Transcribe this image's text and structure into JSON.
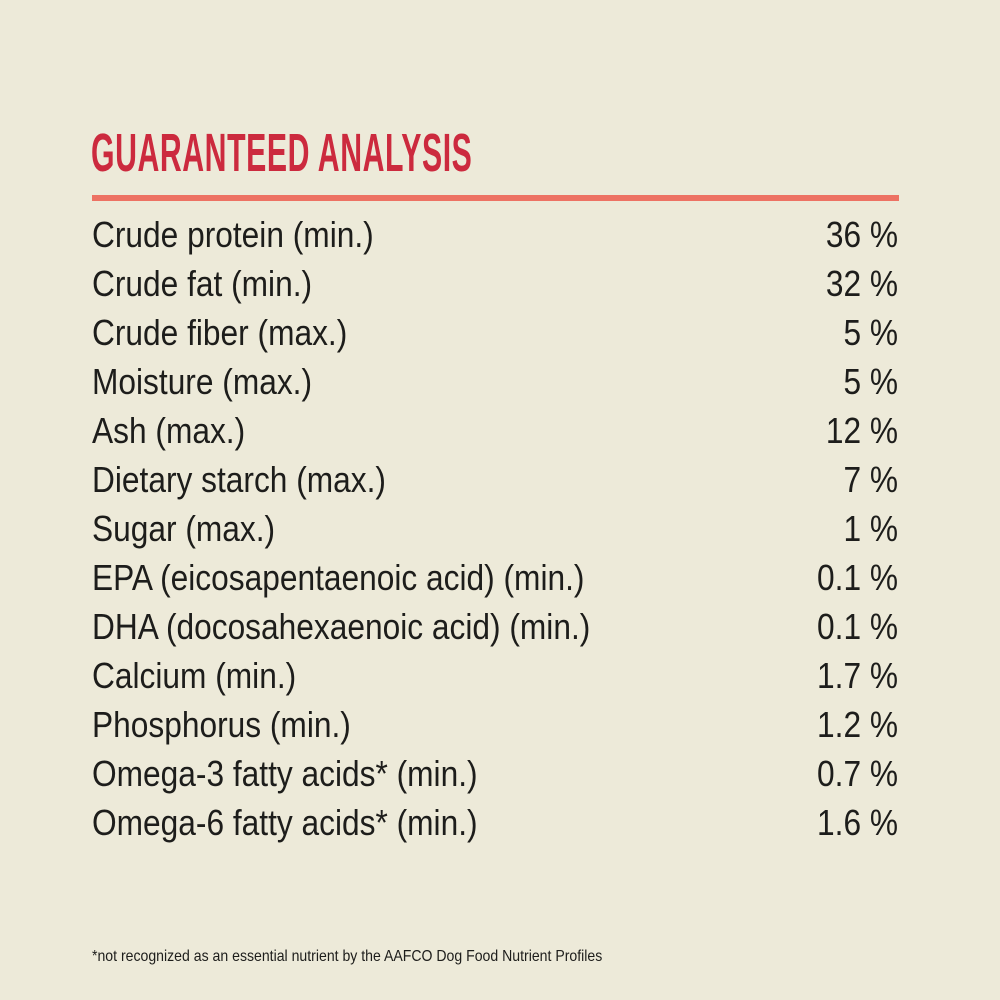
{
  "theme": {
    "background": "#edead9",
    "accent_red": "#cc2a3e",
    "divider_color": "#ed7263",
    "text_color": "#1d1d1b"
  },
  "header": {
    "title": "GUARANTEED ANALYSIS"
  },
  "table": {
    "rows": [
      {
        "label": "Crude protein (min.)",
        "value": "36 %"
      },
      {
        "label": "Crude fat (min.)",
        "value": "32 %"
      },
      {
        "label": "Crude fiber (max.)",
        "value": "5 %"
      },
      {
        "label": "Moisture (max.)",
        "value": "5 %"
      },
      {
        "label": "Ash (max.)",
        "value": "12 %"
      },
      {
        "label": "Dietary starch (max.)",
        "value": "7 %"
      },
      {
        "label": "Sugar (max.)",
        "value": "1 %"
      },
      {
        "label": "EPA (eicosapentaenoic acid) (min.)",
        "value": "0.1 %"
      },
      {
        "label": "DHA (docosahexaenoic acid) (min.)",
        "value": "0.1 %"
      },
      {
        "label": "Calcium (min.)",
        "value": "1.7 %"
      },
      {
        "label": "Phosphorus (min.)",
        "value": "1.2 %"
      },
      {
        "label": "Omega-3 fatty acids* (min.)",
        "value": "0.7 %"
      },
      {
        "label": "Omega-6 fatty acids* (min.)",
        "value": "1.6 %"
      }
    ]
  },
  "footnote": {
    "text": "*not recognized as an essential nutrient by the AAFCO Dog Food Nutrient Profiles"
  }
}
